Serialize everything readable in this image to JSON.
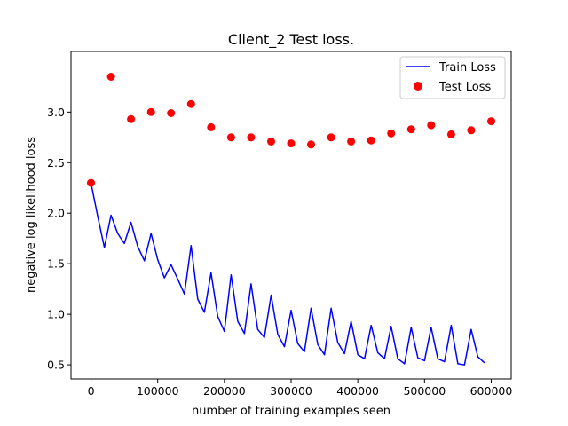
{
  "chart_data": {
    "type": "line",
    "title": "Client_2 Test loss.",
    "xlabel": "number of training examples seen",
    "ylabel": "negative log likelihood loss",
    "xlim": [
      -30000,
      630000
    ],
    "ylim": [
      0.36,
      3.6
    ],
    "xticks": [
      0,
      100000,
      200000,
      300000,
      400000,
      500000,
      600000
    ],
    "xtick_labels": [
      "0",
      "100000",
      "200000",
      "300000",
      "400000",
      "500000",
      "600000"
    ],
    "yticks": [
      0.5,
      1.0,
      1.5,
      2.0,
      2.5,
      3.0
    ],
    "ytick_labels": [
      "0.5",
      "1.0",
      "1.5",
      "2.0",
      "2.5",
      "3.0"
    ],
    "legend_position": "top-right",
    "series": [
      {
        "name": "Train Loss",
        "kind": "line",
        "color": "#0000ff",
        "x": [
          0,
          10000,
          20000,
          30000,
          40000,
          50000,
          60000,
          70000,
          80000,
          90000,
          100000,
          110000,
          120000,
          130000,
          140000,
          150000,
          160000,
          170000,
          180000,
          190000,
          200000,
          210000,
          220000,
          230000,
          240000,
          250000,
          260000,
          270000,
          280000,
          290000,
          300000,
          310000,
          320000,
          330000,
          340000,
          350000,
          360000,
          370000,
          380000,
          390000,
          400000,
          410000,
          420000,
          430000,
          440000,
          450000,
          460000,
          470000,
          480000,
          490000,
          500000,
          510000,
          520000,
          530000,
          540000,
          550000,
          560000,
          570000,
          580000,
          590000
        ],
        "values": [
          2.3,
          1.97,
          1.66,
          1.98,
          1.8,
          1.7,
          1.91,
          1.67,
          1.53,
          1.8,
          1.54,
          1.36,
          1.49,
          1.35,
          1.2,
          1.68,
          1.15,
          1.02,
          1.41,
          0.98,
          0.83,
          1.39,
          0.93,
          0.81,
          1.3,
          0.85,
          0.77,
          1.19,
          0.8,
          0.68,
          1.04,
          0.71,
          0.63,
          1.06,
          0.7,
          0.6,
          1.06,
          0.72,
          0.61,
          0.93,
          0.6,
          0.56,
          0.89,
          0.62,
          0.56,
          0.88,
          0.56,
          0.51,
          0.87,
          0.57,
          0.54,
          0.87,
          0.56,
          0.53,
          0.89,
          0.51,
          0.5,
          0.85,
          0.58,
          0.52
        ]
      },
      {
        "name": "Test Loss",
        "kind": "scatter",
        "color": "#ff0000",
        "x": [
          0,
          30000,
          60000,
          90000,
          120000,
          150000,
          180000,
          210000,
          240000,
          270000,
          300000,
          330000,
          360000,
          390000,
          420000,
          450000,
          480000,
          510000,
          540000,
          570000,
          600000
        ],
        "values": [
          2.3,
          3.35,
          2.93,
          3.0,
          2.99,
          3.08,
          2.85,
          2.75,
          2.75,
          2.71,
          2.69,
          2.68,
          2.75,
          2.71,
          2.72,
          2.79,
          2.83,
          2.87,
          2.78,
          2.82,
          2.91
        ]
      }
    ]
  }
}
